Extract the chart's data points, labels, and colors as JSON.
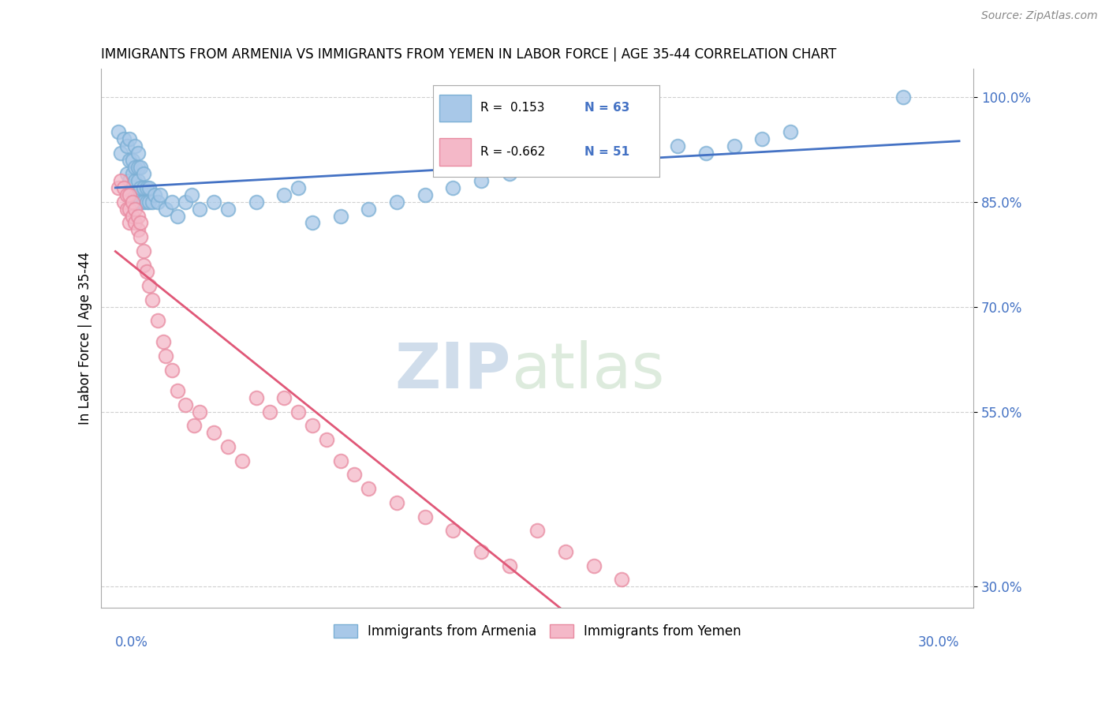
{
  "title": "IMMIGRANTS FROM ARMENIA VS IMMIGRANTS FROM YEMEN IN LABOR FORCE | AGE 35-44 CORRELATION CHART",
  "source": "Source: ZipAtlas.com",
  "ylabel": "In Labor Force | Age 35-44",
  "watermark_zip": "ZIP",
  "watermark_atlas": "atlas",
  "armenia_R": 0.153,
  "armenia_N": 63,
  "yemen_R": -0.662,
  "yemen_N": 51,
  "armenia_color": "#a8c8e8",
  "armenia_edge_color": "#7bafd4",
  "yemen_color": "#f4b8c8",
  "yemen_edge_color": "#e88aa0",
  "armenia_line_color": "#4472c4",
  "yemen_line_color": "#e05878",
  "xlim_min": 0.0,
  "xlim_max": 0.3,
  "ylim_min": 0.27,
  "ylim_max": 1.04,
  "ytick_vals": [
    0.3,
    0.55,
    0.7,
    0.85,
    1.0
  ],
  "ytick_labels": [
    "30.0%",
    "55.0%",
    "70.0%",
    "85.0%",
    "100.0%"
  ],
  "xtick_left_label": "0.0%",
  "xtick_right_label": "30.0%",
  "background_color": "#ffffff",
  "grid_color": "#d0d0d0",
  "tick_color": "#4472c4",
  "legend_label_armenia": "Immigrants from Armenia",
  "legend_label_yemen": "Immigrants from Yemen",
  "armenia_x": [
    0.001,
    0.002,
    0.003,
    0.004,
    0.004,
    0.005,
    0.005,
    0.005,
    0.006,
    0.006,
    0.006,
    0.007,
    0.007,
    0.007,
    0.007,
    0.008,
    0.008,
    0.008,
    0.008,
    0.009,
    0.009,
    0.009,
    0.01,
    0.01,
    0.01,
    0.011,
    0.011,
    0.012,
    0.012,
    0.013,
    0.014,
    0.015,
    0.016,
    0.018,
    0.02,
    0.022,
    0.025,
    0.027,
    0.03,
    0.035,
    0.04,
    0.05,
    0.06,
    0.065,
    0.07,
    0.08,
    0.09,
    0.1,
    0.11,
    0.12,
    0.13,
    0.14,
    0.15,
    0.16,
    0.17,
    0.18,
    0.19,
    0.2,
    0.21,
    0.22,
    0.23,
    0.24,
    0.28
  ],
  "armenia_y": [
    0.95,
    0.92,
    0.94,
    0.93,
    0.89,
    0.91,
    0.88,
    0.94,
    0.87,
    0.89,
    0.91,
    0.86,
    0.88,
    0.9,
    0.93,
    0.86,
    0.88,
    0.9,
    0.92,
    0.85,
    0.87,
    0.9,
    0.85,
    0.87,
    0.89,
    0.85,
    0.87,
    0.85,
    0.87,
    0.85,
    0.86,
    0.85,
    0.86,
    0.84,
    0.85,
    0.83,
    0.85,
    0.86,
    0.84,
    0.85,
    0.84,
    0.85,
    0.86,
    0.87,
    0.82,
    0.83,
    0.84,
    0.85,
    0.86,
    0.87,
    0.88,
    0.89,
    0.9,
    0.91,
    0.92,
    0.91,
    0.92,
    0.93,
    0.92,
    0.93,
    0.94,
    0.95,
    1.0
  ],
  "yemen_x": [
    0.001,
    0.002,
    0.003,
    0.003,
    0.004,
    0.004,
    0.005,
    0.005,
    0.005,
    0.006,
    0.006,
    0.007,
    0.007,
    0.008,
    0.008,
    0.009,
    0.009,
    0.01,
    0.01,
    0.011,
    0.012,
    0.013,
    0.015,
    0.017,
    0.018,
    0.02,
    0.022,
    0.025,
    0.028,
    0.03,
    0.035,
    0.04,
    0.045,
    0.05,
    0.055,
    0.06,
    0.065,
    0.07,
    0.075,
    0.08,
    0.085,
    0.09,
    0.1,
    0.11,
    0.12,
    0.13,
    0.14,
    0.15,
    0.16,
    0.17,
    0.18
  ],
  "yemen_y": [
    0.87,
    0.88,
    0.87,
    0.85,
    0.86,
    0.84,
    0.86,
    0.84,
    0.82,
    0.85,
    0.83,
    0.84,
    0.82,
    0.83,
    0.81,
    0.82,
    0.8,
    0.78,
    0.76,
    0.75,
    0.73,
    0.71,
    0.68,
    0.65,
    0.63,
    0.61,
    0.58,
    0.56,
    0.53,
    0.55,
    0.52,
    0.5,
    0.48,
    0.57,
    0.55,
    0.57,
    0.55,
    0.53,
    0.51,
    0.48,
    0.46,
    0.44,
    0.42,
    0.4,
    0.38,
    0.35,
    0.33,
    0.38,
    0.35,
    0.33,
    0.31
  ]
}
